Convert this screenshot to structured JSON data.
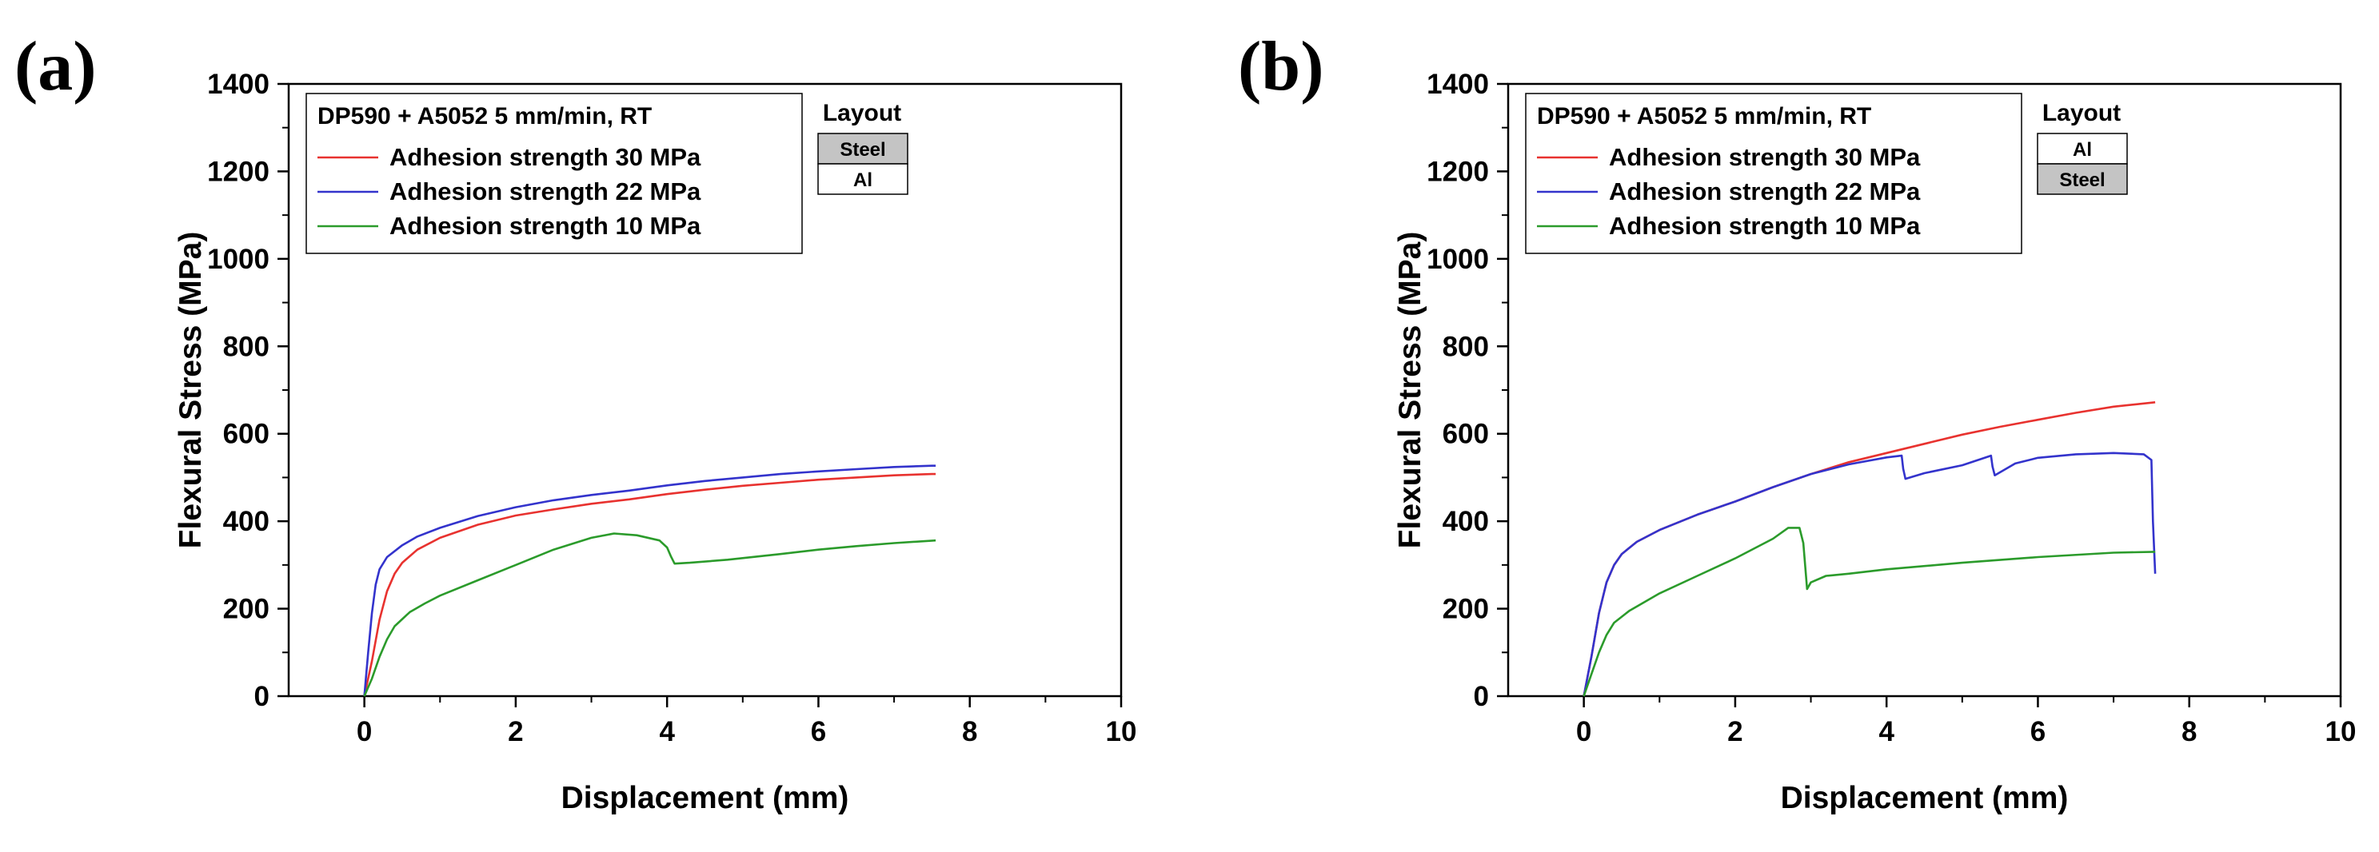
{
  "chart_data": [
    {
      "panel_label": "(a)",
      "type": "line",
      "xlabel": "Displacement (mm)",
      "ylabel": "Flexural Stress (MPa)",
      "xlim": [
        -1,
        10
      ],
      "ylim": [
        0,
        1400
      ],
      "xticks": [
        0,
        2,
        4,
        6,
        8,
        10
      ],
      "yticks": [
        0,
        200,
        400,
        600,
        800,
        1000,
        1200,
        1400
      ],
      "legend_title": "DP590 + A5052 5 mm/min, RT",
      "legend_placement": "top-left",
      "layout_title": "Layout",
      "layout_layers": [
        {
          "label": "Steel",
          "fill": "#c4c4c4"
        },
        {
          "label": "Al",
          "fill": "#ffffff"
        }
      ],
      "series": [
        {
          "name": "Adhesion strength 30 MPa",
          "color": "#e8322f",
          "points": [
            [
              0,
              0
            ],
            [
              0.1,
              80
            ],
            [
              0.2,
              175
            ],
            [
              0.3,
              240
            ],
            [
              0.4,
              280
            ],
            [
              0.5,
              305
            ],
            [
              0.7,
              335
            ],
            [
              1.0,
              362
            ],
            [
              1.5,
              392
            ],
            [
              2.0,
              413
            ],
            [
              2.5,
              427
            ],
            [
              3.0,
              440
            ],
            [
              3.5,
              450
            ],
            [
              4.0,
              462
            ],
            [
              4.5,
              472
            ],
            [
              5.0,
              481
            ],
            [
              5.5,
              488
            ],
            [
              6.0,
              495
            ],
            [
              6.5,
              500
            ],
            [
              7.0,
              505
            ],
            [
              7.5,
              508
            ],
            [
              7.55,
              508
            ]
          ]
        },
        {
          "name": "Adhesion strength 22 MPa",
          "color": "#3333cc",
          "points": [
            [
              0,
              0
            ],
            [
              0.05,
              100
            ],
            [
              0.1,
              190
            ],
            [
              0.15,
              255
            ],
            [
              0.2,
              290
            ],
            [
              0.3,
              318
            ],
            [
              0.5,
              345
            ],
            [
              0.7,
              365
            ],
            [
              1.0,
              385
            ],
            [
              1.5,
              412
            ],
            [
              2.0,
              432
            ],
            [
              2.5,
              448
            ],
            [
              3.0,
              460
            ],
            [
              3.5,
              470
            ],
            [
              4.0,
              482
            ],
            [
              4.5,
              492
            ],
            [
              5.0,
              500
            ],
            [
              5.5,
              508
            ],
            [
              6.0,
              514
            ],
            [
              6.5,
              519
            ],
            [
              7.0,
              524
            ],
            [
              7.5,
              527
            ],
            [
              7.55,
              527
            ]
          ]
        },
        {
          "name": "Adhesion strength 10 MPa",
          "color": "#2b9b2b",
          "points": [
            [
              0,
              0
            ],
            [
              0.1,
              40
            ],
            [
              0.2,
              90
            ],
            [
              0.3,
              130
            ],
            [
              0.4,
              160
            ],
            [
              0.6,
              192
            ],
            [
              0.8,
              212
            ],
            [
              1.0,
              230
            ],
            [
              1.5,
              265
            ],
            [
              2.0,
              300
            ],
            [
              2.5,
              335
            ],
            [
              3.0,
              362
            ],
            [
              3.3,
              372
            ],
            [
              3.6,
              368
            ],
            [
              3.9,
              356
            ],
            [
              4.0,
              340
            ],
            [
              4.05,
              320
            ],
            [
              4.1,
              303
            ],
            [
              4.3,
              305
            ],
            [
              4.8,
              312
            ],
            [
              5.5,
              325
            ],
            [
              6.0,
              335
            ],
            [
              6.5,
              343
            ],
            [
              7.0,
              350
            ],
            [
              7.55,
              356
            ]
          ]
        }
      ]
    },
    {
      "panel_label": "(b)",
      "type": "line",
      "xlabel": "Displacement (mm)",
      "ylabel": "Flexural Stress (MPa)",
      "xlim": [
        -1,
        10
      ],
      "ylim": [
        0,
        1400
      ],
      "xticks": [
        0,
        2,
        4,
        6,
        8,
        10
      ],
      "yticks": [
        0,
        200,
        400,
        600,
        800,
        1000,
        1200,
        1400
      ],
      "legend_title": "DP590 + A5052 5 mm/min, RT",
      "legend_placement": "top-left",
      "layout_title": "Layout",
      "layout_layers": [
        {
          "label": "Al",
          "fill": "#ffffff"
        },
        {
          "label": "Steel",
          "fill": "#c4c4c4"
        }
      ],
      "series": [
        {
          "name": "Adhesion strength 30 MPa",
          "color": "#e8322f",
          "points": [
            [
              0,
              0
            ],
            [
              0.1,
              90
            ],
            [
              0.2,
              190
            ],
            [
              0.3,
              260
            ],
            [
              0.4,
              300
            ],
            [
              0.5,
              325
            ],
            [
              0.7,
              353
            ],
            [
              1.0,
              380
            ],
            [
              1.5,
              415
            ],
            [
              2.0,
              445
            ],
            [
              2.5,
              478
            ],
            [
              3.0,
              508
            ],
            [
              3.5,
              535
            ],
            [
              4.0,
              556
            ],
            [
              4.5,
              577
            ],
            [
              5.0,
              598
            ],
            [
              5.5,
              616
            ],
            [
              6.0,
              632
            ],
            [
              6.5,
              648
            ],
            [
              7.0,
              662
            ],
            [
              7.55,
              672
            ]
          ]
        },
        {
          "name": "Adhesion strength 22 MPa",
          "color": "#3333cc",
          "points": [
            [
              0,
              0
            ],
            [
              0.1,
              90
            ],
            [
              0.2,
              190
            ],
            [
              0.3,
              260
            ],
            [
              0.4,
              300
            ],
            [
              0.5,
              325
            ],
            [
              0.7,
              353
            ],
            [
              1.0,
              380
            ],
            [
              1.5,
              415
            ],
            [
              2.0,
              445
            ],
            [
              2.5,
              478
            ],
            [
              3.0,
              508
            ],
            [
              3.5,
              530
            ],
            [
              4.0,
              546
            ],
            [
              4.2,
              550
            ],
            [
              4.22,
              520
            ],
            [
              4.25,
              497
            ],
            [
              4.5,
              510
            ],
            [
              5.0,
              528
            ],
            [
              5.38,
              550
            ],
            [
              5.4,
              525
            ],
            [
              5.43,
              505
            ],
            [
              5.7,
              532
            ],
            [
              6.0,
              545
            ],
            [
              6.5,
              553
            ],
            [
              7.0,
              556
            ],
            [
              7.4,
              553
            ],
            [
              7.5,
              540
            ],
            [
              7.52,
              400
            ],
            [
              7.55,
              280
            ]
          ]
        },
        {
          "name": "Adhesion strength 10 MPa",
          "color": "#2b9b2b",
          "points": [
            [
              0,
              0
            ],
            [
              0.1,
              50
            ],
            [
              0.2,
              100
            ],
            [
              0.3,
              140
            ],
            [
              0.4,
              168
            ],
            [
              0.6,
              195
            ],
            [
              0.8,
              215
            ],
            [
              1.0,
              235
            ],
            [
              1.5,
              275
            ],
            [
              2.0,
              315
            ],
            [
              2.5,
              360
            ],
            [
              2.7,
              385
            ],
            [
              2.85,
              385
            ],
            [
              2.9,
              350
            ],
            [
              2.95,
              245
            ],
            [
              3.0,
              260
            ],
            [
              3.2,
              275
            ],
            [
              3.5,
              280
            ],
            [
              4.0,
              290
            ],
            [
              5.0,
              305
            ],
            [
              6.0,
              318
            ],
            [
              7.0,
              328
            ],
            [
              7.55,
              330
            ]
          ]
        }
      ]
    }
  ]
}
